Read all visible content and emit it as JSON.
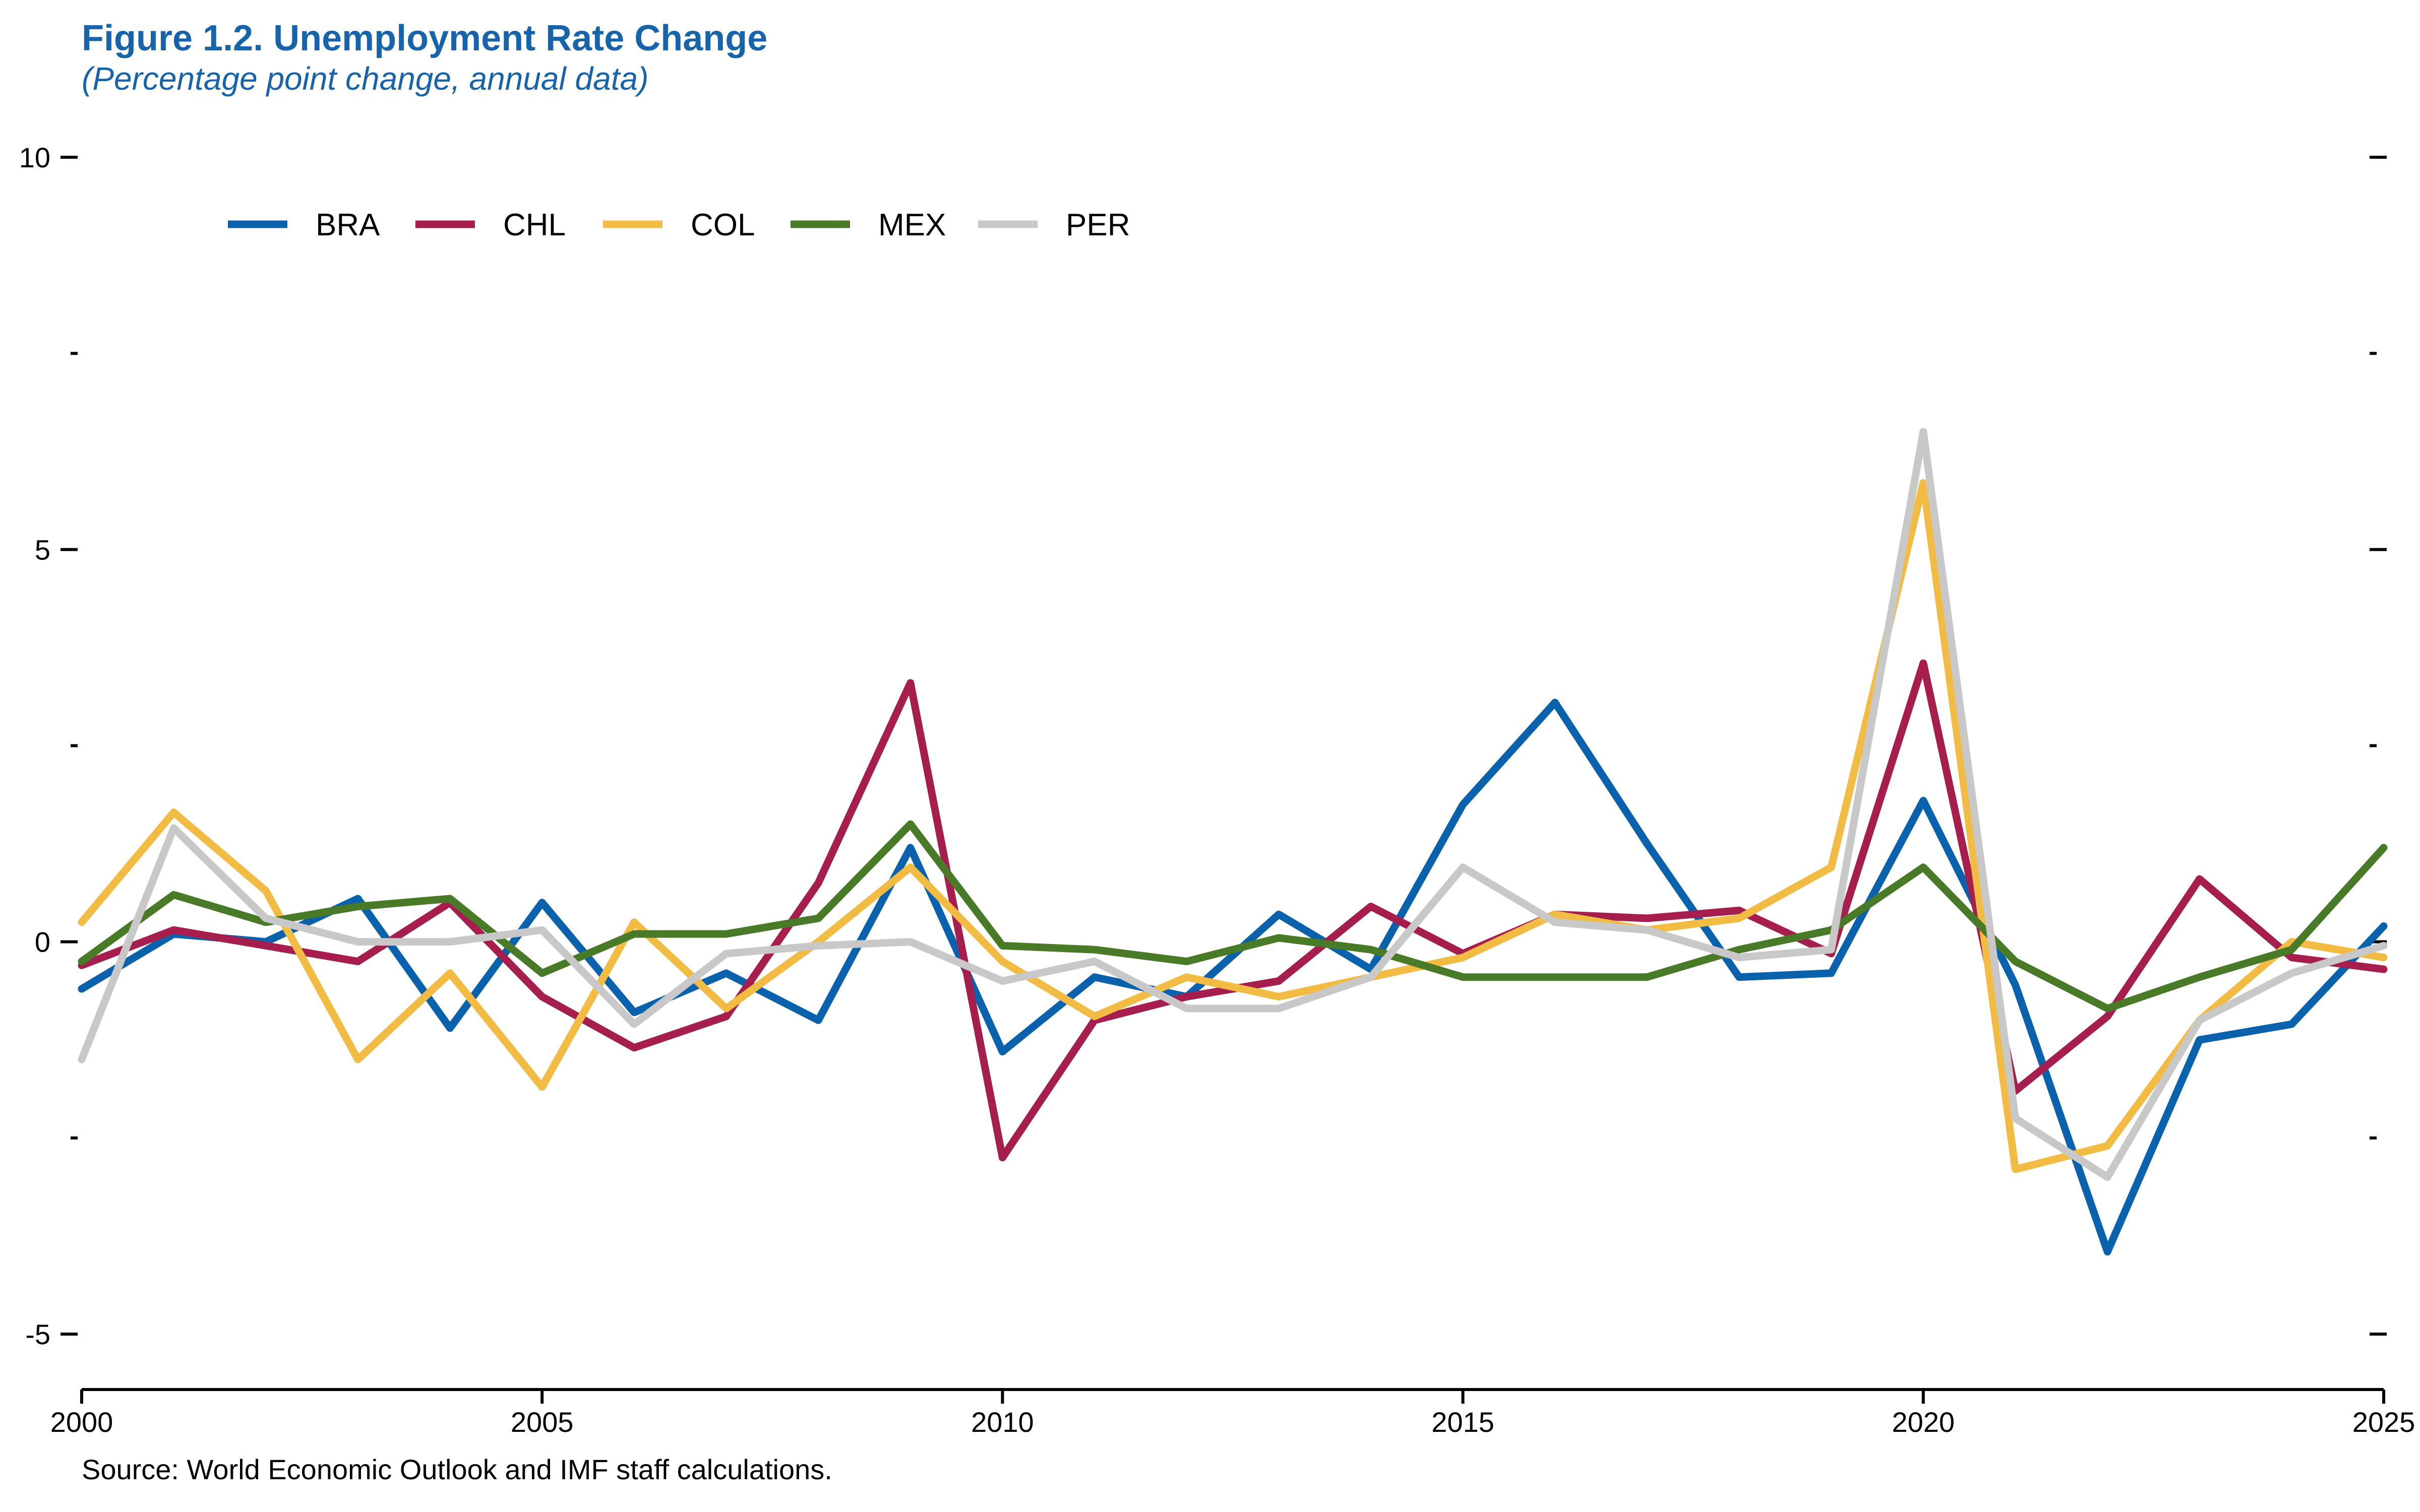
{
  "figure": {
    "title": "Figure 1.2.  Unemployment Rate Change",
    "subtitle": "(Percentage point change, annual data)",
    "source": "Source: World Economic Outlook and IMF staff calculations."
  },
  "colors": {
    "title": "#1764AB",
    "axis": "#000000"
  },
  "chart_data": {
    "type": "line",
    "title": "Figure 1.2.  Unemployment Rate Change",
    "subtitle": "(Percentage point change, annual data)",
    "xlabel": "",
    "ylabel": "",
    "xlim": [
      2000,
      2025
    ],
    "ylim": [
      -5,
      10
    ],
    "xticks": [
      2000,
      2005,
      2010,
      2015,
      2020,
      2025
    ],
    "xtick_labels": [
      "2000",
      "2005",
      "2010",
      "2015",
      "2020",
      "2025"
    ],
    "yticks": [
      -5,
      -2.5,
      0,
      2.5,
      5,
      7.5,
      10
    ],
    "ytick_labels": [
      "-5",
      "",
      "0",
      "",
      "5",
      "",
      "10"
    ],
    "grid": false,
    "legend_position": "top-left",
    "x": [
      2000,
      2001,
      2002,
      2003,
      2004,
      2005,
      2006,
      2007,
      2008,
      2009,
      2010,
      2011,
      2012,
      2013,
      2014,
      2015,
      2016,
      2017,
      2018,
      2019,
      2020,
      2021,
      2022,
      2023,
      2024,
      2025
    ],
    "series": [
      {
        "name": "BRA",
        "color": "#0B62AC",
        "values": [
          -0.6,
          0.1,
          0.0,
          0.55,
          -1.1,
          0.5,
          -0.9,
          -0.4,
          -1.0,
          1.2,
          -1.4,
          -0.45,
          -0.7,
          0.35,
          -0.35,
          1.75,
          3.05,
          1.25,
          -0.45,
          -0.4,
          1.8,
          -0.55,
          -3.95,
          -1.25,
          -1.05,
          0.2
        ]
      },
      {
        "name": "CHL",
        "color": "#A51E4E",
        "values": [
          -0.3,
          0.15,
          -0.05,
          -0.25,
          0.5,
          -0.7,
          -1.35,
          -0.95,
          0.75,
          3.3,
          -2.75,
          -1.0,
          -0.7,
          -0.5,
          0.45,
          -0.15,
          0.35,
          0.3,
          0.4,
          -0.15,
          3.55,
          -1.9,
          -0.95,
          0.8,
          -0.2,
          -0.35
        ]
      },
      {
        "name": "COL",
        "color": "#F2BC44",
        "values": [
          0.25,
          1.65,
          0.65,
          -1.5,
          -0.4,
          -1.85,
          0.25,
          -0.85,
          0.0,
          0.95,
          -0.25,
          -0.95,
          -0.45,
          -0.7,
          -0.45,
          -0.2,
          0.35,
          0.15,
          0.3,
          0.95,
          5.85,
          -2.9,
          -2.6,
          -1.0,
          0.0,
          -0.2
        ]
      },
      {
        "name": "MEX",
        "color": "#497A27",
        "values": [
          -0.25,
          0.6,
          0.25,
          0.45,
          0.55,
          -0.4,
          0.1,
          0.1,
          0.3,
          1.5,
          -0.05,
          -0.1,
          -0.25,
          0.05,
          -0.1,
          -0.45,
          -0.45,
          -0.45,
          -0.1,
          0.15,
          0.95,
          -0.25,
          -0.85,
          -0.45,
          -0.1,
          1.2
        ]
      },
      {
        "name": "PER",
        "color": "#C8C8C8",
        "values": [
          -1.5,
          1.45,
          0.3,
          0.0,
          0.0,
          0.15,
          -1.05,
          -0.15,
          -0.05,
          0.0,
          -0.5,
          -0.25,
          -0.85,
          -0.85,
          -0.45,
          0.95,
          0.25,
          0.15,
          -0.2,
          -0.1,
          6.5,
          -2.25,
          -3.0,
          -1.0,
          -0.4,
          -0.05
        ]
      }
    ]
  }
}
